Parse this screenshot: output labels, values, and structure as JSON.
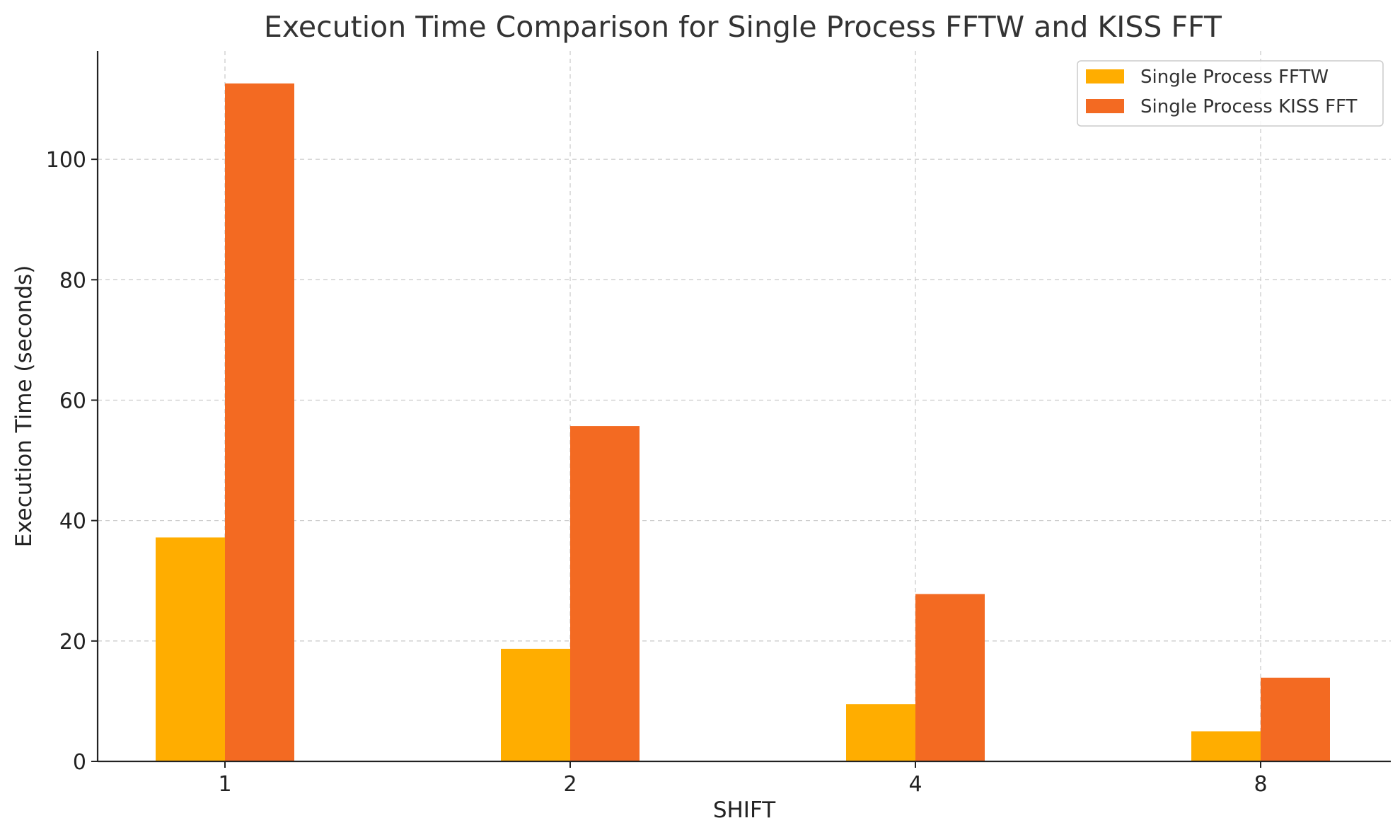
{
  "chart_data": {
    "type": "bar",
    "title": "Execution Time Comparison for Single Process FFTW and KISS FFT",
    "xlabel": "SHIFT",
    "ylabel": "Execution Time (seconds)",
    "categories": [
      "1",
      "2",
      "4",
      "8"
    ],
    "series": [
      {
        "name": "Single Process FFTW",
        "values": [
          37.2,
          18.7,
          9.5,
          5.0
        ],
        "color": "#ffad00"
      },
      {
        "name": "Single Process KISS FFT",
        "values": [
          112.6,
          55.7,
          27.8,
          13.9
        ],
        "color": "#f36a22"
      }
    ],
    "ylim": [
      0,
      118
    ],
    "yticks": [
      0,
      20,
      40,
      60,
      80,
      100
    ],
    "grid": true,
    "legend_position": "top-right"
  }
}
